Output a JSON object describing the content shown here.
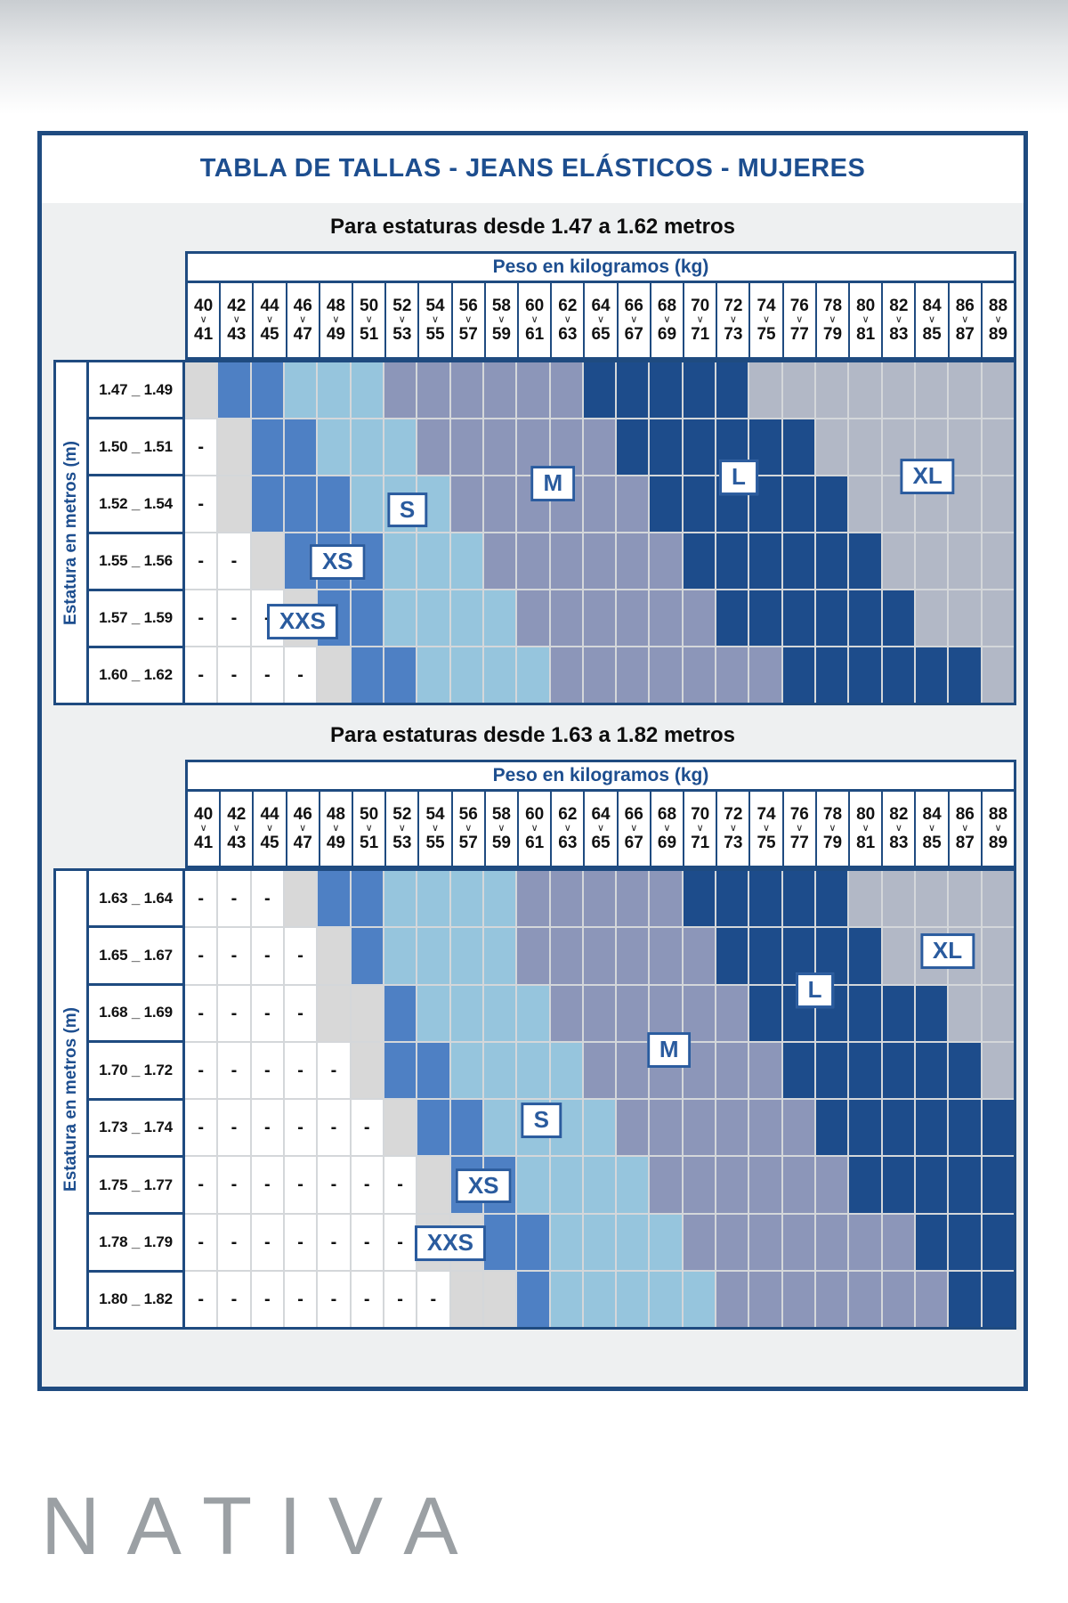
{
  "title": "TABLA DE TALLAS - JEANS ELÁSTICOS - MUJERES",
  "weight_header": "Peso en kilogramos (kg)",
  "height_axis_label": "Estatura en metros (m)",
  "dash_symbol": "-",
  "logo": "NATIVA",
  "colors": {
    "border_navy": "#1f4b80",
    "title_blue": "#1d4e8f",
    "dash": "#ffffff",
    "XXS": "#d8d8d8",
    "XS": "#4e80c4",
    "S": "#96c5dd",
    "M": "#8c96b9",
    "L": "#1d4c8b",
    "XL": "#b2b8c6",
    "gridline": "#d4d7da",
    "panel_bg": "#eef0f1"
  },
  "cell_code_map": {
    "-": "dash",
    "g": "XXS",
    "b": "XS",
    "s": "S",
    "m": "M",
    "l": "L",
    "x": "XL"
  },
  "chart_data": {
    "type": "heatmap",
    "x_axis_title": "Peso en kilogramos (kg)",
    "y_axis_title": "Estatura en metros (m)",
    "weight_columns": [
      [
        "40",
        "41"
      ],
      [
        "42",
        "43"
      ],
      [
        "44",
        "45"
      ],
      [
        "46",
        "47"
      ],
      [
        "48",
        "49"
      ],
      [
        "50",
        "51"
      ],
      [
        "52",
        "53"
      ],
      [
        "54",
        "55"
      ],
      [
        "56",
        "57"
      ],
      [
        "58",
        "59"
      ],
      [
        "60",
        "61"
      ],
      [
        "62",
        "63"
      ],
      [
        "64",
        "65"
      ],
      [
        "66",
        "67"
      ],
      [
        "68",
        "69"
      ],
      [
        "70",
        "71"
      ],
      [
        "72",
        "73"
      ],
      [
        "74",
        "75"
      ],
      [
        "76",
        "77"
      ],
      [
        "78",
        "79"
      ],
      [
        "80",
        "81"
      ],
      [
        "82",
        "83"
      ],
      [
        "84",
        "85"
      ],
      [
        "86",
        "87"
      ],
      [
        "88",
        "89"
      ]
    ],
    "sizes_legend": [
      "XXS",
      "XS",
      "S",
      "M",
      "L",
      "XL"
    ],
    "tables": [
      {
        "subtitle": "Para estaturas desde 1.47 a 1.62 metros",
        "rows": [
          {
            "label": "1.47 _ 1.49",
            "cells": "gbbsssmmmmmmlllllxxxxxxxx"
          },
          {
            "label": "1.50 _ 1.51",
            "cells": "-gbbsssmmmmmmllllllxxxxxx"
          },
          {
            "label": "1.52 _ 1.54",
            "cells": "-gbbbsssmmmmmmllllllxxxxx"
          },
          {
            "label": "1.55 _ 1.56",
            "cells": "--gbbbsssmmmmmmllllllxxxx"
          },
          {
            "label": "1.57 _ 1.59",
            "cells": "---gbbssssmmmmmmllllllxxx"
          },
          {
            "label": "1.60 _ 1.62",
            "cells": "----gbbssssmmmmmmmllllllx"
          }
        ],
        "size_labels": [
          {
            "text": "XXS",
            "col": 3.54,
            "row": 4.5
          },
          {
            "text": "XS",
            "col": 4.6,
            "row": 3.46
          },
          {
            "text": "S",
            "col": 6.7,
            "row": 2.56
          },
          {
            "text": "M",
            "col": 11.1,
            "row": 2.1
          },
          {
            "text": "L",
            "col": 16.7,
            "row": 2.0
          },
          {
            "text": "XL",
            "col": 22.4,
            "row": 1.98
          }
        ]
      },
      {
        "subtitle": "Para estaturas desde 1.63 a 1.82 metros",
        "rows": [
          {
            "label": "1.63 _ 1.64",
            "cells": "---gbbssssmmmmmlllllxxxxx"
          },
          {
            "label": "1.65 _ 1.67",
            "cells": "----gbssssmmmmmmlllllxxxx"
          },
          {
            "label": "1.68 _ 1.69",
            "cells": "----ggbssssmmmmmmllllllxx"
          },
          {
            "label": "1.70 _ 1.72",
            "cells": "-----gbbssssmmmmmmllllllx"
          },
          {
            "label": "1.73 _ 1.74",
            "cells": "------gbbssssmmmmmmllllll"
          },
          {
            "label": "1.75 _ 1.77",
            "cells": "-------gbbssssmmmmmmlllll"
          },
          {
            "label": "1.78 _ 1.79",
            "cells": "-------ggbbssssmmmmmmmlll"
          },
          {
            "label": "1.80 _ 1.82",
            "cells": "--------ggbsssssmmmmmmmll"
          }
        ],
        "size_labels": [
          {
            "text": "XXS",
            "col": 8.0,
            "row": 6.45
          },
          {
            "text": "XS",
            "col": 9.0,
            "row": 5.46
          },
          {
            "text": "S",
            "col": 10.75,
            "row": 4.33
          },
          {
            "text": "M",
            "col": 14.6,
            "row": 3.1
          },
          {
            "text": "L",
            "col": 19.0,
            "row": 2.07
          },
          {
            "text": "XL",
            "col": 23.0,
            "row": 1.39
          }
        ]
      }
    ]
  }
}
